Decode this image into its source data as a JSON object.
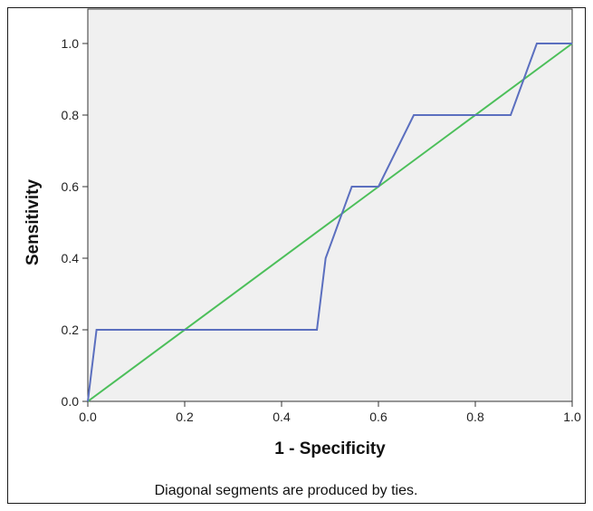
{
  "chart_data": {
    "type": "line",
    "xlabel": "1 - Specificity",
    "ylabel": "Sensitivity",
    "xlim": [
      0,
      1
    ],
    "ylim": [
      0,
      1
    ],
    "x_ticks": [
      "0.0",
      "0.2",
      "0.4",
      "0.6",
      "0.8",
      "1.0"
    ],
    "y_ticks": [
      "0.0",
      "0.2",
      "0.4",
      "0.6",
      "0.8",
      "1.0"
    ],
    "grid": false,
    "footnote": "Diagonal segments are produced by ties.",
    "background_color": "#f0f0f0",
    "series": [
      {
        "color": "#5b6fbf",
        "x": [
          0.0,
          0.018,
          0.473,
          0.491,
          0.545,
          0.6,
          0.673,
          0.873,
          0.927,
          1.0
        ],
        "y": [
          0.0,
          0.2,
          0.2,
          0.4,
          0.6,
          0.6,
          0.8,
          0.8,
          1.0,
          1.0
        ]
      },
      {
        "color": "#4cbf5a",
        "x": [
          0.0,
          1.0
        ],
        "y": [
          0.0,
          1.0
        ]
      }
    ]
  }
}
